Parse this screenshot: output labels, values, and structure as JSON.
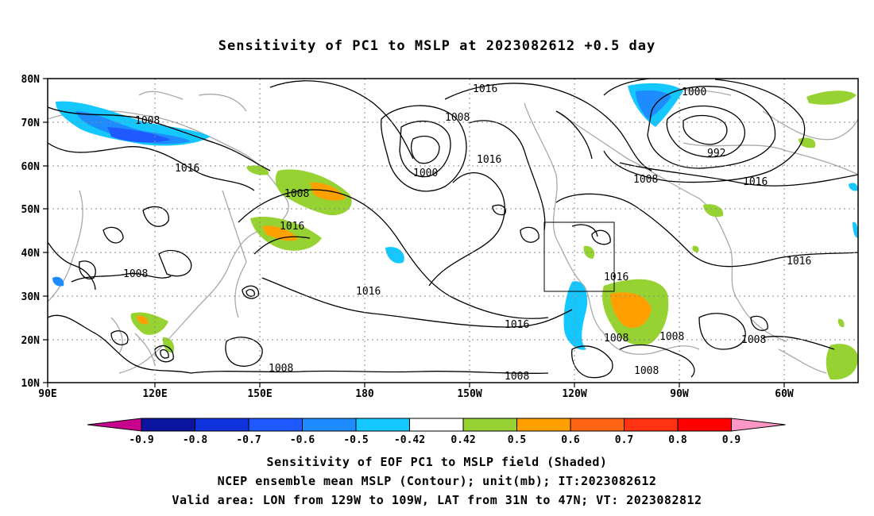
{
  "title": "Sensitivity of PC1 to MSLP at 2023082612 +0.5 day",
  "map": {
    "lat_ticks": [
      "80N",
      "70N",
      "60N",
      "50N",
      "40N",
      "30N",
      "20N",
      "10N"
    ],
    "lon_ticks": [
      "90E",
      "120E",
      "150E",
      "180",
      "150W",
      "120W",
      "90W",
      "60W"
    ],
    "contour_labels": [
      "1016",
      "1008",
      "1000",
      "1008",
      "1016",
      "1000",
      "992",
      "1008",
      "1008",
      "1016",
      "1016",
      "1016",
      "1008",
      "1016",
      "1016",
      "1016",
      "1016",
      "1008",
      "1008",
      "1008",
      "1008",
      "1008",
      "1008"
    ],
    "valid_box": {
      "lon": [
        "129W",
        "109W"
      ],
      "lat": [
        "31N",
        "47N"
      ]
    }
  },
  "colorbar": {
    "labels": [
      "-0.9",
      "-0.8",
      "-0.7",
      "-0.6",
      "-0.5",
      "-0.42",
      "0.42",
      "0.5",
      "0.6",
      "0.7",
      "0.8",
      "0.9"
    ],
    "colors": [
      "#c8008c",
      "#0a14a0",
      "#0f32dc",
      "#1e5aff",
      "#1e8cff",
      "#14c8ff",
      "#ffffff",
      "#96d232",
      "#ffa000",
      "#ff6414",
      "#ff3214",
      "#ff0000",
      "#ff96c8"
    ]
  },
  "captions": [
    "Sensitivity of EOF PC1 to MSLP field (Shaded)",
    "NCEP ensemble mean MSLP (Contour); unit(mb); IT:2023082612",
    "Valid area: LON from 129W to 109W, LAT from 31N to 47N; VT: 2023082812"
  ]
}
